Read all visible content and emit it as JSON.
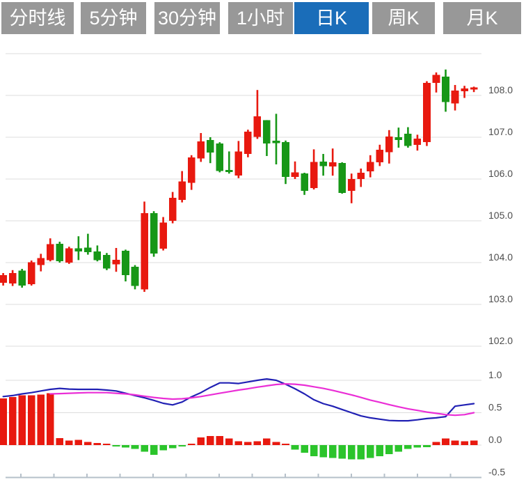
{
  "tabbar": {
    "tabs": [
      {
        "id": "timeline",
        "label": "分时线",
        "active": false
      },
      {
        "id": "5min",
        "label": "5分钟",
        "active": false
      },
      {
        "id": "30min",
        "label": "30分钟",
        "active": false
      },
      {
        "id": "1hour",
        "label": "1小时",
        "active": false
      },
      {
        "id": "daily-k",
        "label": "日K",
        "active": true
      },
      {
        "id": "weekly-k",
        "label": "周K",
        "active": false
      },
      {
        "id": "monthly-k",
        "label": "月K",
        "active": false
      }
    ]
  },
  "colors": {
    "up": "#e8190f",
    "down": "#179717",
    "macd_up": "#e8190f",
    "macd_down": "#2bc42b",
    "dif_line": "#2121b4",
    "dea_line": "#ea2ed6",
    "grid": "#dcdcdc",
    "axis_line": "#b6c0ca",
    "axis_text": "#4d4d4d",
    "tab_bg": "#989898",
    "tab_active_bg": "#1a6db9",
    "tab_text": "#ffffff"
  },
  "chart_data": [
    {
      "type": "candlestick",
      "title": "",
      "period_selected": "日K",
      "y_axis_side": "right",
      "grid": true,
      "y_ticks": [
        "108.0",
        "107.0",
        "106.0",
        "105.0",
        "104.0",
        "103.0",
        "102.0"
      ],
      "ylim": [
        101.9,
        109.3
      ],
      "color_convention": "red = close above open (CN), green = close below open",
      "candles_ohlc": [
        [
          103.52,
          103.75,
          103.45,
          103.7
        ],
        [
          103.5,
          103.82,
          103.44,
          103.75
        ],
        [
          103.81,
          103.85,
          103.4,
          103.45
        ],
        [
          103.48,
          104.05,
          103.45,
          104.01
        ],
        [
          103.94,
          104.21,
          103.79,
          104.11
        ],
        [
          104.06,
          104.58,
          104.03,
          104.44
        ],
        [
          104.45,
          104.5,
          104.0,
          104.03
        ],
        [
          104.0,
          104.38,
          103.97,
          104.34
        ],
        [
          104.34,
          104.63,
          104.06,
          104.27
        ],
        [
          104.36,
          104.69,
          104.19,
          104.25
        ],
        [
          104.27,
          104.41,
          104.03,
          104.06
        ],
        [
          104.18,
          104.23,
          103.82,
          103.86
        ],
        [
          103.96,
          104.35,
          103.78,
          104.07
        ],
        [
          104.28,
          104.31,
          103.55,
          103.7
        ],
        [
          103.9,
          103.94,
          103.36,
          103.44
        ],
        [
          103.36,
          105.46,
          103.3,
          105.18
        ],
        [
          105.18,
          105.23,
          104.14,
          104.22
        ],
        [
          104.33,
          105.09,
          104.29,
          104.96
        ],
        [
          105.0,
          105.69,
          104.94,
          105.55
        ],
        [
          105.5,
          106.19,
          105.44,
          105.94
        ],
        [
          105.91,
          106.57,
          105.74,
          106.52
        ],
        [
          106.49,
          107.1,
          106.41,
          106.9
        ],
        [
          106.93,
          107.0,
          106.38,
          106.63
        ],
        [
          106.85,
          106.88,
          106.16,
          106.19
        ],
        [
          106.22,
          106.66,
          106.13,
          106.17
        ],
        [
          106.08,
          106.91,
          106.02,
          106.66
        ],
        [
          106.6,
          107.18,
          106.52,
          107.13
        ],
        [
          107.01,
          108.13,
          106.96,
          107.5
        ],
        [
          107.41,
          107.41,
          106.55,
          106.85
        ],
        [
          106.92,
          107.56,
          106.35,
          106.86
        ],
        [
          106.88,
          106.92,
          105.88,
          106.05
        ],
        [
          106.05,
          106.42,
          106.0,
          106.16
        ],
        [
          106.13,
          106.15,
          105.62,
          105.72
        ],
        [
          105.78,
          106.71,
          105.75,
          106.41
        ],
        [
          106.42,
          106.6,
          106.08,
          106.31
        ],
        [
          106.3,
          106.73,
          106.08,
          106.4
        ],
        [
          106.38,
          106.4,
          105.65,
          105.67
        ],
        [
          105.72,
          106.13,
          105.42,
          106.0
        ],
        [
          106.0,
          106.25,
          105.81,
          106.15
        ],
        [
          106.18,
          106.57,
          106.04,
          106.41
        ],
        [
          106.4,
          106.82,
          106.31,
          106.7
        ],
        [
          106.64,
          107.17,
          106.37,
          107.02
        ],
        [
          107.0,
          107.23,
          106.75,
          106.93
        ],
        [
          107.08,
          107.24,
          106.75,
          106.79
        ],
        [
          106.82,
          107.06,
          106.68,
          106.97
        ],
        [
          106.88,
          108.34,
          106.79,
          108.3
        ],
        [
          108.3,
          108.55,
          108.07,
          108.49
        ],
        [
          108.45,
          108.62,
          107.61,
          107.84
        ],
        [
          107.81,
          108.25,
          107.64,
          108.12
        ],
        [
          108.1,
          108.23,
          107.94,
          108.17
        ],
        [
          108.14,
          108.21,
          108.08,
          108.19
        ]
      ]
    },
    {
      "type": "macd",
      "grid": true,
      "y_axis_side": "right",
      "y_ticks": [
        "1.0",
        "0.5",
        "0.0",
        "-0.5"
      ],
      "ylim": [
        -0.5,
        1.0
      ],
      "histogram": [
        0.72,
        0.74,
        0.77,
        0.77,
        0.78,
        0.8,
        0.11,
        0.07,
        0.08,
        0.05,
        0.03,
        0.02,
        -0.02,
        -0.04,
        -0.06,
        -0.1,
        -0.15,
        -0.08,
        -0.05,
        -0.02,
        0.02,
        0.12,
        0.14,
        0.14,
        0.1,
        0.06,
        0.05,
        0.06,
        0.1,
        0.05,
        0.02,
        -0.07,
        -0.12,
        -0.17,
        -0.19,
        -0.2,
        -0.21,
        -0.22,
        -0.22,
        -0.2,
        -0.17,
        -0.14,
        -0.1,
        -0.06,
        -0.04,
        -0.03,
        0.05,
        0.1,
        0.07,
        0.06,
        0.07
      ],
      "series": [
        {
          "name": "DIF",
          "values": [
            0.75,
            0.765,
            0.79,
            0.81,
            0.835,
            0.86,
            0.875,
            0.865,
            0.86,
            0.86,
            0.86,
            0.85,
            0.835,
            0.8,
            0.765,
            0.73,
            0.69,
            0.645,
            0.62,
            0.665,
            0.745,
            0.81,
            0.89,
            0.96,
            0.96,
            0.95,
            0.975,
            1.0,
            1.02,
            1.0,
            0.94,
            0.87,
            0.79,
            0.7,
            0.64,
            0.6,
            0.55,
            0.5,
            0.45,
            0.42,
            0.4,
            0.38,
            0.375,
            0.375,
            0.39,
            0.41,
            0.42,
            0.44,
            0.6,
            0.62,
            0.64
          ]
        },
        {
          "name": "DEA",
          "values": [
            null,
            null,
            null,
            null,
            null,
            0.79,
            0.795,
            0.8,
            0.805,
            0.81,
            0.81,
            0.81,
            0.8,
            0.79,
            0.775,
            0.755,
            0.735,
            0.72,
            0.71,
            0.715,
            0.73,
            0.75,
            0.775,
            0.8,
            0.825,
            0.85,
            0.87,
            0.895,
            0.915,
            0.935,
            0.945,
            0.94,
            0.925,
            0.9,
            0.875,
            0.845,
            0.81,
            0.775,
            0.735,
            0.695,
            0.66,
            0.625,
            0.59,
            0.56,
            0.535,
            0.51,
            0.49,
            0.47,
            0.46,
            0.47,
            0.5
          ]
        }
      ]
    }
  ]
}
